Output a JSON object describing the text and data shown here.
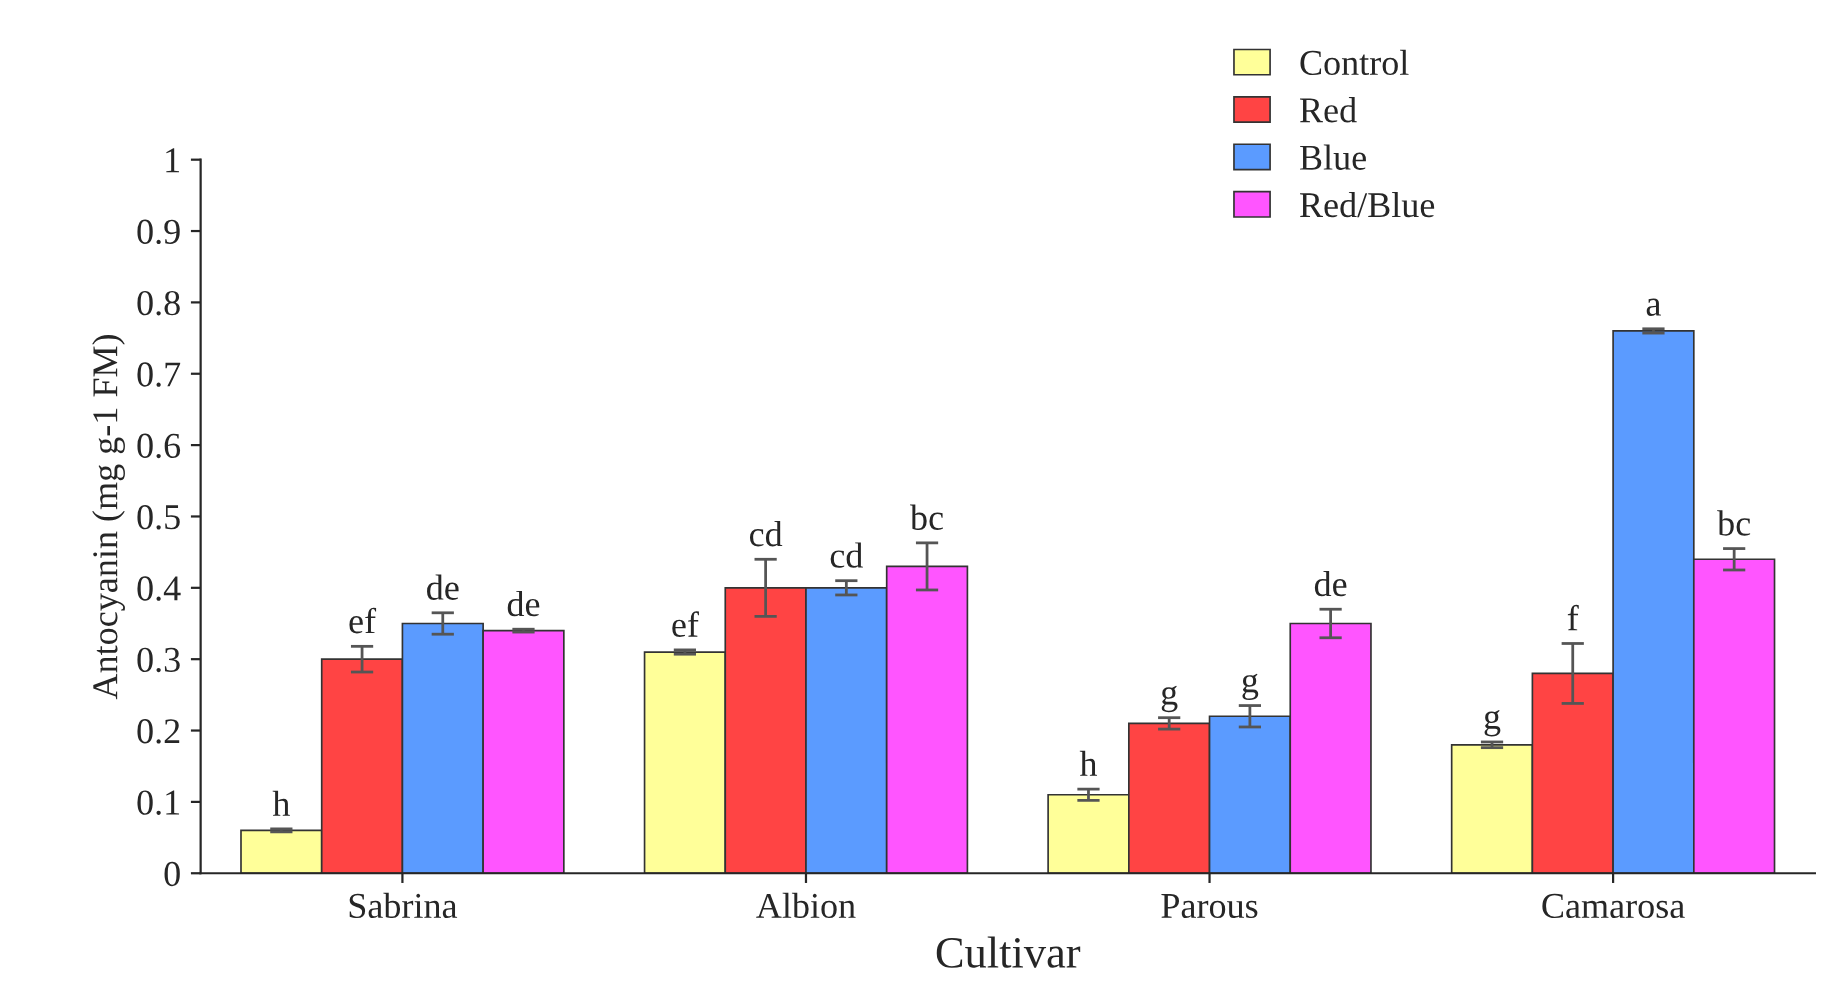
{
  "chart_data": {
    "type": "bar",
    "xlabel": "Cultivar",
    "ylabel": "Antocyanin (mg g-1 FM)",
    "categories": [
      "Sabrina",
      "Albion",
      "Parous",
      "Camarosa"
    ],
    "series": [
      {
        "name": "Control",
        "color": "#ffff99",
        "values": [
          0.06,
          0.31,
          0.11,
          0.18
        ],
        "errors": [
          0.002,
          0.003,
          0.008,
          0.004
        ],
        "value_labels": [
          "h",
          "ef",
          "h",
          "g"
        ]
      },
      {
        "name": "Red",
        "color": "#ff4444",
        "values": [
          0.3,
          0.4,
          0.21,
          0.28
        ],
        "errors": [
          0.018,
          0.04,
          0.008,
          0.042
        ],
        "value_labels": [
          "ef",
          "cd",
          "g",
          "f"
        ]
      },
      {
        "name": "Blue",
        "color": "#5b9bff",
        "values": [
          0.35,
          0.4,
          0.22,
          0.76
        ],
        "errors": [
          0.015,
          0.01,
          0.015,
          0.003
        ],
        "value_labels": [
          "de",
          "cd",
          "g",
          "a"
        ]
      },
      {
        "name": "Red/Blue",
        "color": "#ff55ff",
        "values": [
          0.34,
          0.43,
          0.35,
          0.44
        ],
        "errors": [
          0.002,
          0.033,
          0.02,
          0.015
        ],
        "value_labels": [
          "de",
          "bc",
          "de",
          "bc"
        ]
      }
    ],
    "ylim": [
      0,
      1
    ],
    "yticks": [
      0,
      0.1,
      0.2,
      0.3,
      0.4,
      0.5,
      0.6,
      0.7,
      0.8,
      0.9,
      1
    ],
    "grid": false,
    "legend": "top"
  }
}
